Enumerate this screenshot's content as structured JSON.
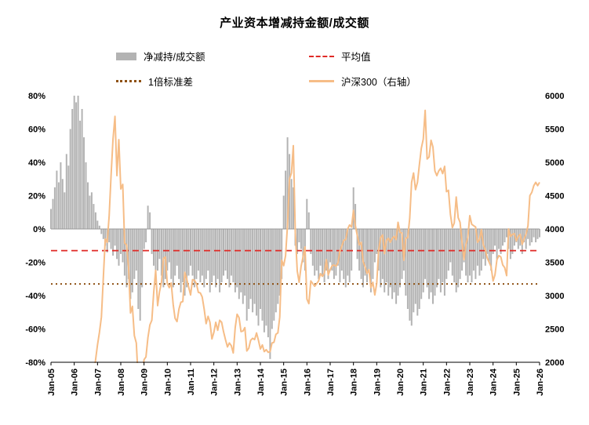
{
  "title": "产业资本增减持金额/成交额",
  "legend": {
    "bar": "净减持/成交额",
    "mean": "平均值",
    "std": "1倍标准差",
    "index": "沪深300（右轴）"
  },
  "colors": {
    "bar": "#b3b3b3",
    "mean": "#e02a26",
    "std": "#8e5113",
    "index": "#f6bd87",
    "axis": "#000000",
    "zero_line": "#9a9a9a"
  },
  "chart_data": {
    "type": "bar",
    "subtype": "bar+line dual axis",
    "frequency": "monthly",
    "x_labels": [
      "Jan-05",
      "Jan-06",
      "Jan-07",
      "Jan-08",
      "Jan-09",
      "Jan-10",
      "Jan-11",
      "Jan-12",
      "Jan-13",
      "Jan-14",
      "Jan-15",
      "Jan-16",
      "Jan-17",
      "Jan-18",
      "Jan-19",
      "Jan-20",
      "Jan-21",
      "Jan-22",
      "Jan-23",
      "Jan-24",
      "Jan-25",
      "Jan-26"
    ],
    "left_axis": {
      "min": -80,
      "max": 80,
      "step": 20,
      "unit": "%"
    },
    "right_axis": {
      "min": 2000,
      "max": 6000,
      "step": 500
    },
    "mean_value": -13,
    "std_value": -33,
    "legend_position": "top",
    "grid": false,
    "series": [
      {
        "name": "净减持/成交额",
        "axis": "left",
        "type": "bar",
        "values": [
          12,
          18,
          25,
          35,
          28,
          40,
          30,
          22,
          45,
          38,
          60,
          72,
          80,
          76,
          80,
          65,
          72,
          55,
          40,
          28,
          20,
          22,
          15,
          10,
          5,
          2,
          -3,
          -6,
          -10,
          -14,
          -8,
          -12,
          -16,
          -10,
          -18,
          -22,
          -15,
          -20,
          -28,
          -35,
          -30,
          -42,
          -38,
          -30,
          -25,
          -48,
          -55,
          -35,
          -12,
          -8,
          14,
          10,
          -15,
          -22,
          -30,
          -25,
          -18,
          -28,
          -35,
          -30,
          -25,
          -20,
          -30,
          -35,
          -28,
          -22,
          -30,
          -38,
          -32,
          -40,
          -35,
          -28,
          -22,
          -28,
          -35,
          -30,
          -25,
          -32,
          -28,
          -35,
          -30,
          -25,
          -38,
          -32,
          -28,
          -35,
          -30,
          -38,
          -32,
          -28,
          -25,
          -30,
          -35,
          -28,
          -32,
          -38,
          -35,
          -42,
          -38,
          -45,
          -40,
          -55,
          -48,
          -42,
          -50,
          -45,
          -52,
          -58,
          -48,
          -55,
          -62,
          -58,
          -65,
          -78,
          -60,
          -55,
          -50,
          -45,
          -40,
          -30,
          20,
          35,
          55,
          45,
          30,
          25,
          -10,
          -15,
          -8,
          -12,
          -20,
          -25,
          18,
          10,
          -15,
          -22,
          -28,
          -25,
          -30,
          -22,
          -28,
          -32,
          -25,
          -30,
          -20,
          -25,
          -30,
          -28,
          -22,
          -32,
          -25,
          -30,
          -35,
          -28,
          -32,
          -25,
          25,
          15,
          -18,
          -25,
          -30,
          -35,
          -28,
          -32,
          -25,
          -38,
          -30,
          -20,
          -15,
          -25,
          -35,
          -30,
          -38,
          -32,
          -40,
          -35,
          -42,
          -38,
          -45,
          -40,
          -35,
          -30,
          -25,
          -40,
          -48,
          -55,
          -58,
          -50,
          -45,
          -52,
          -48,
          -42,
          -38,
          -30,
          -35,
          -42,
          -38,
          -45,
          -40,
          -35,
          -30,
          -38,
          -32,
          -40,
          -30,
          -25,
          -20,
          -28,
          -32,
          -38,
          -35,
          -30,
          -25,
          -20,
          -28,
          -32,
          -28,
          -32,
          -25,
          -30,
          -22,
          -28,
          -25,
          -18,
          -22,
          -15,
          -20,
          -25,
          -15,
          -10,
          -18,
          -12,
          -15,
          -10,
          -8,
          -5,
          -12,
          -18,
          -15,
          -10,
          -8,
          -12,
          -10,
          -15,
          -8,
          -12,
          -6,
          -10,
          -8,
          -5,
          -8,
          -6,
          -5
        ]
      },
      {
        "name": "沪深300（右轴）",
        "axis": "right",
        "type": "line",
        "values": [
          1000,
          980,
          1010,
          950,
          920,
          880,
          900,
          920,
          930,
          910,
          930,
          940,
          980,
          1080,
          1130,
          1200,
          1350,
          1380,
          1370,
          1450,
          1500,
          1570,
          1800,
          2040,
          2260,
          2450,
          2680,
          3280,
          3850,
          3800,
          4200,
          4800,
          5350,
          5690,
          4800,
          5340,
          4600,
          4670,
          3790,
          3760,
          3430,
          2740,
          2840,
          2400,
          2290,
          1720,
          1840,
          1820,
          2040,
          2080,
          2370,
          2560,
          2630,
          3050,
          3380,
          2850,
          3060,
          3200,
          3560,
          3580,
          3180,
          3120,
          3190,
          2870,
          2660,
          2610,
          2800,
          2900,
          2910,
          3350,
          3250,
          3130,
          3010,
          3240,
          3230,
          3180,
          3050,
          3040,
          2980,
          2800,
          2580,
          2690,
          2600,
          2350,
          2450,
          2600,
          2480,
          2630,
          2600,
          2460,
          2340,
          2230,
          2290,
          2250,
          2140,
          2520,
          2720,
          2670,
          2460,
          2470,
          2520,
          2170,
          2210,
          2330,
          2360,
          2340,
          2440,
          2330,
          2200,
          2260,
          2160,
          2190,
          2150,
          2160,
          2290,
          2300,
          2420,
          2440,
          2680,
          3530,
          3450,
          3600,
          4060,
          4750,
          4840,
          5250,
          3950,
          3370,
          3200,
          3440,
          3580,
          3730,
          2950,
          2880,
          3220,
          3180,
          3140,
          3180,
          3220,
          3330,
          3290,
          3340,
          3540,
          3310,
          3390,
          3450,
          3460,
          3440,
          3490,
          3670,
          3740,
          3830,
          3840,
          4000,
          4060,
          4030,
          4280,
          4050,
          3900,
          3760,
          3800,
          3510,
          3430,
          3330,
          3390,
          3120,
          3200,
          3010,
          3180,
          3680,
          3870,
          3910,
          3630,
          3830,
          3860,
          3800,
          3860,
          3890,
          3840,
          4100,
          3950,
          3940,
          3530,
          3860,
          3870,
          4160,
          4700,
          4840,
          4590,
          4700,
          4960,
          5210,
          5350,
          5780,
          5050,
          5080,
          5330,
          5230,
          4870,
          4800,
          4870,
          4910,
          4830,
          4940,
          4560,
          4580,
          4220,
          4020,
          4090,
          4480,
          4170,
          4100,
          3800,
          3540,
          3770,
          3870,
          4200,
          4070,
          4050,
          4030,
          3800,
          3840,
          3990,
          3760,
          3690,
          3560,
          3500,
          3430,
          3220,
          3310,
          3540,
          3600,
          3580,
          3460,
          3420,
          3300,
          4000,
          3890,
          3920,
          3930,
          3820,
          3890,
          3920,
          3770,
          3850,
          3920,
          4050,
          4500,
          4550,
          4650,
          4700,
          4650,
          4700
        ]
      }
    ]
  }
}
